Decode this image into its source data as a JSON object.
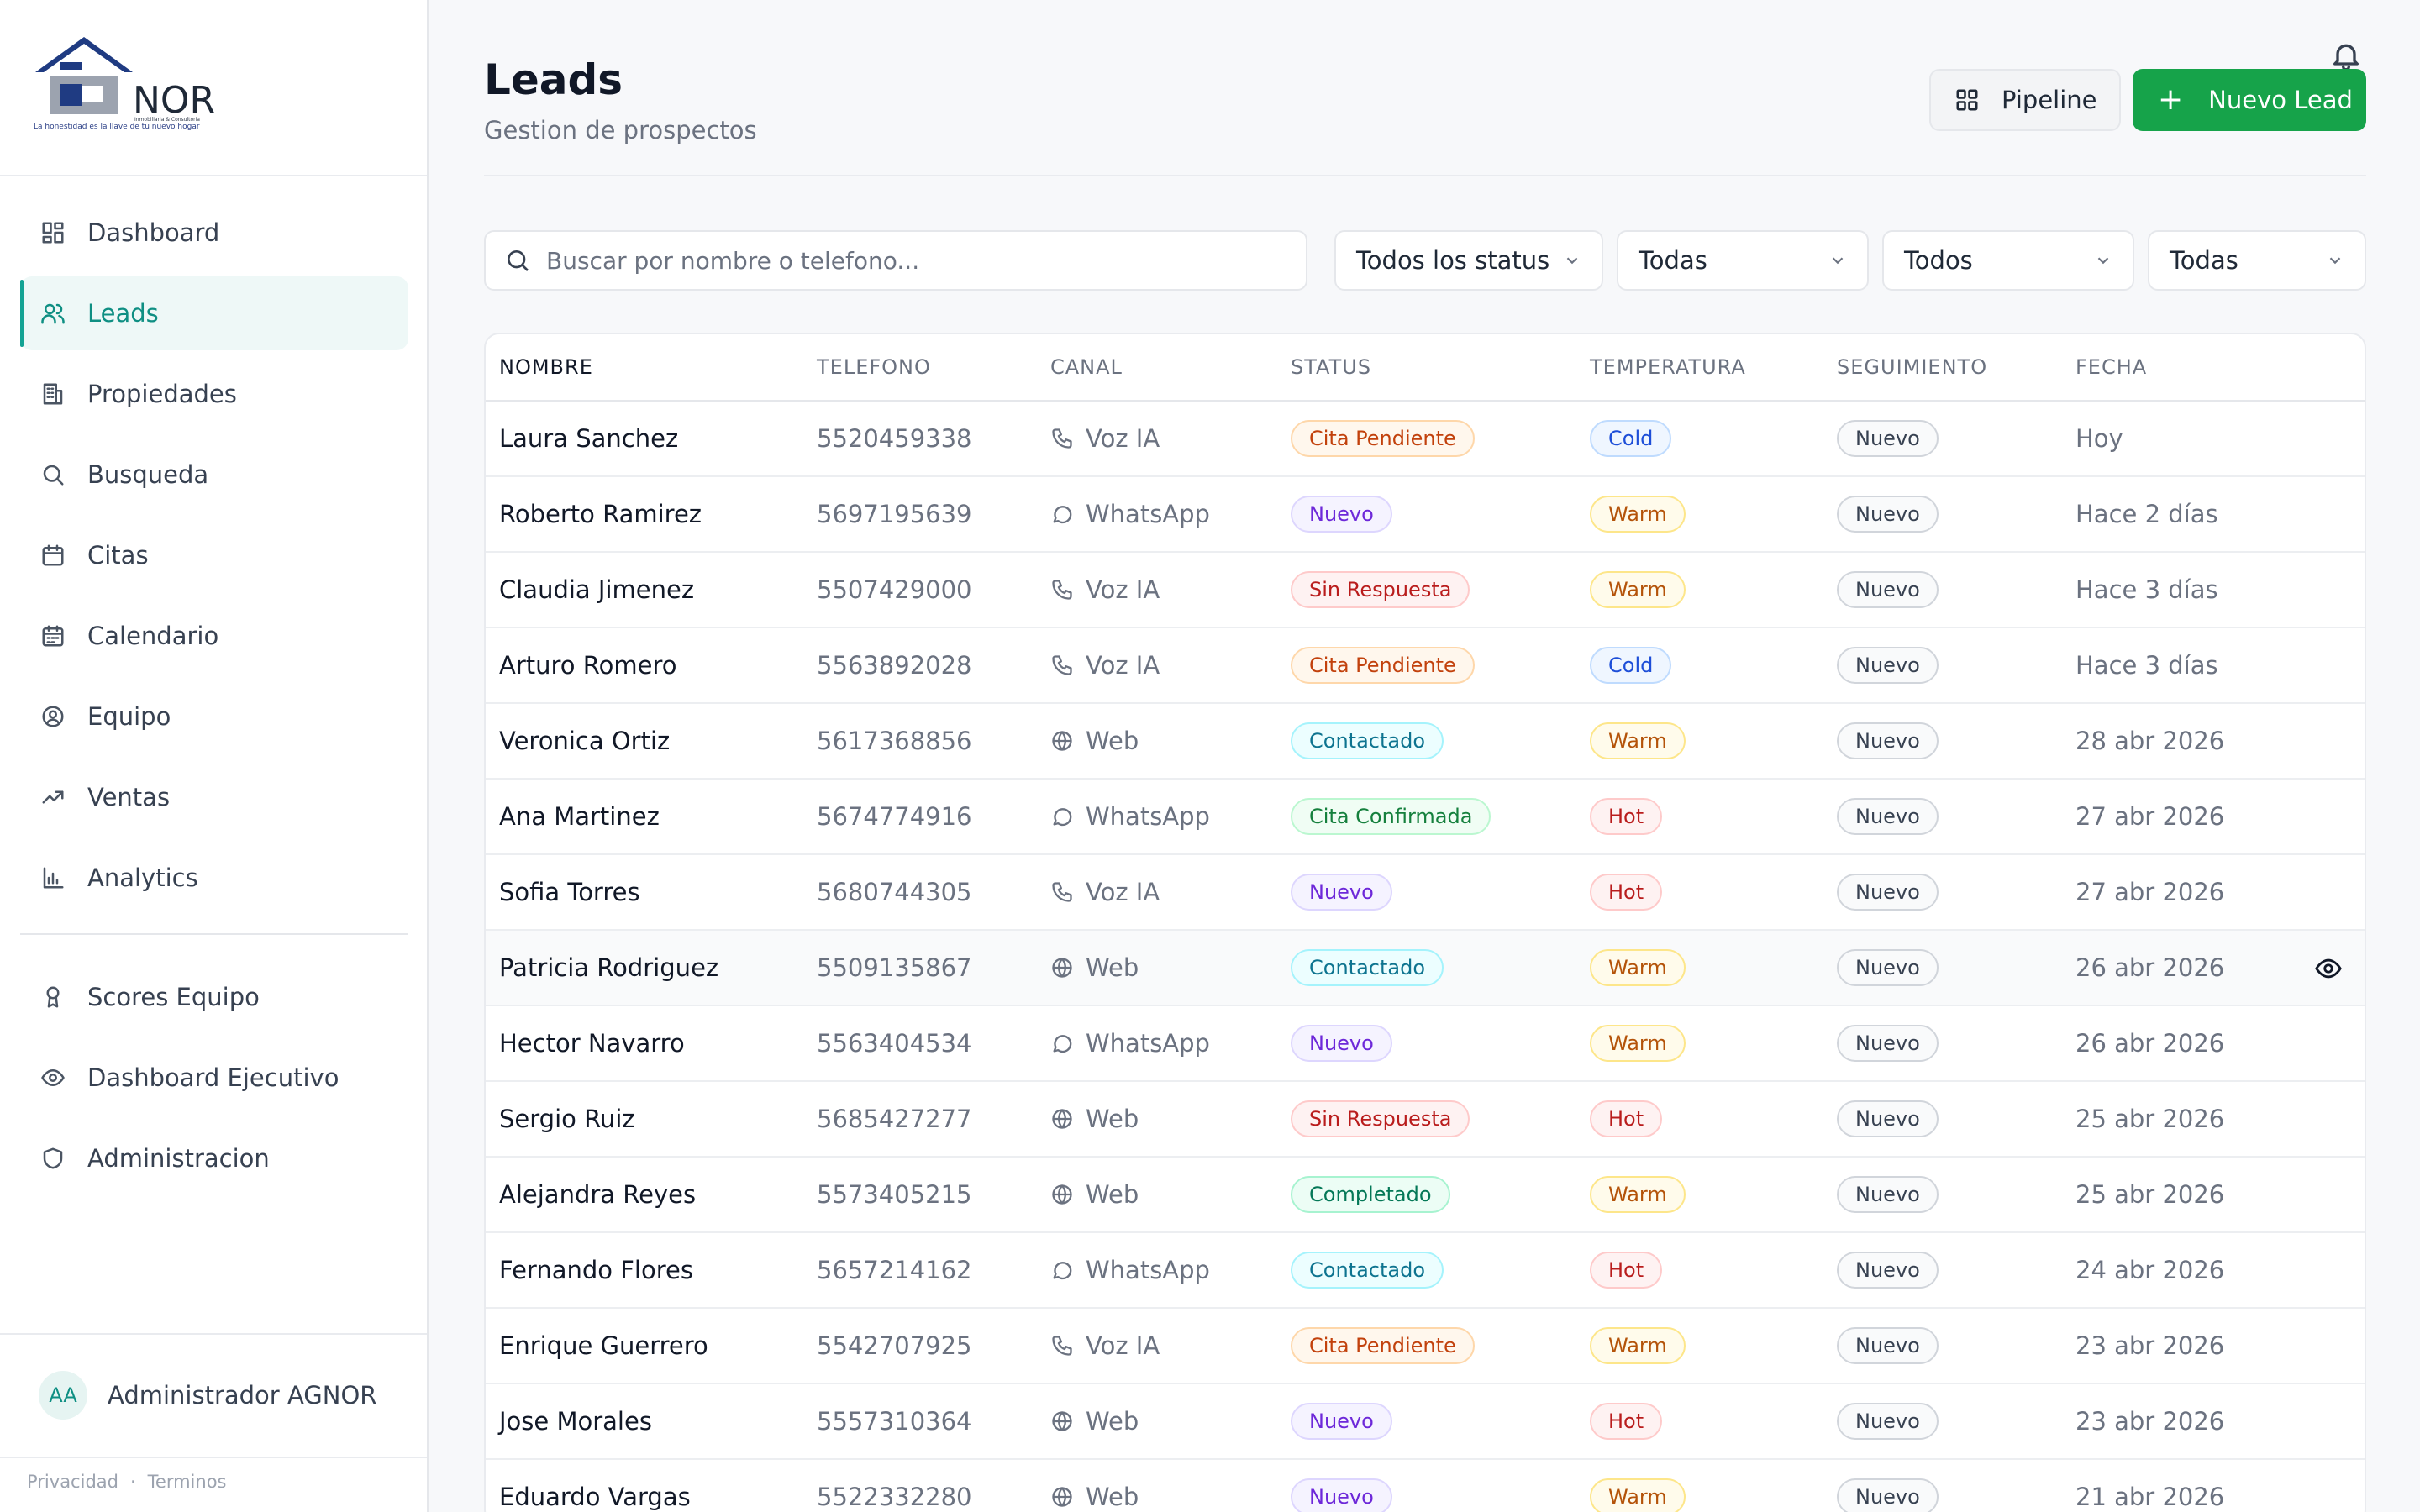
{
  "sidebar": {
    "logo_text": "NOR",
    "logo_subtext": "Inmobiliaria & Consultoria",
    "logo_tagline": "La honestidad es la llave de tu nuevo hogar",
    "nav": [
      {
        "label": "Dashboard",
        "icon": "dashboard-icon"
      },
      {
        "label": "Leads",
        "icon": "users-icon",
        "active": true
      },
      {
        "label": "Propiedades",
        "icon": "building-icon"
      },
      {
        "label": "Busqueda",
        "icon": "search-icon"
      },
      {
        "label": "Citas",
        "icon": "calendar-icon"
      },
      {
        "label": "Calendario",
        "icon": "calendar-grid-icon"
      },
      {
        "label": "Equipo",
        "icon": "user-circle-icon"
      },
      {
        "label": "Ventas",
        "icon": "trending-up-icon"
      },
      {
        "label": "Analytics",
        "icon": "bar-chart-icon"
      }
    ],
    "nav2": [
      {
        "label": "Scores Equipo",
        "icon": "award-icon"
      },
      {
        "label": "Dashboard Ejecutivo",
        "icon": "eye-icon"
      },
      {
        "label": "Administracion",
        "icon": "shield-icon"
      }
    ],
    "user": {
      "initials": "AA",
      "name": "Administrador AGNOR"
    },
    "footer": {
      "privacy": "Privacidad",
      "separator": "·",
      "terms": "Terminos"
    }
  },
  "header": {
    "title": "Leads",
    "subtitle": "Gestion de prospectos",
    "pipeline_label": "Pipeline",
    "new_lead_label": "Nuevo Lead"
  },
  "filters": {
    "search_placeholder": "Buscar por nombre o telefono...",
    "status": "Todos los status",
    "filter2": "Todas",
    "filter3": "Todos",
    "filter4": "Todas"
  },
  "table": {
    "columns": [
      "NOMBRE",
      "TELEFONO",
      "CANAL",
      "STATUS",
      "TEMPERATURA",
      "SEGUIMIENTO",
      "FECHA"
    ],
    "rows": [
      {
        "nombre": "Laura Sanchez",
        "telefono": "5520459338",
        "canal": "Voz IA",
        "status": "Cita Pendiente",
        "temperatura": "Cold",
        "seguimiento": "Nuevo",
        "fecha": "Hoy"
      },
      {
        "nombre": "Roberto Ramirez",
        "telefono": "5697195639",
        "canal": "WhatsApp",
        "status": "Nuevo",
        "temperatura": "Warm",
        "seguimiento": "Nuevo",
        "fecha": "Hace 2 días"
      },
      {
        "nombre": "Claudia Jimenez",
        "telefono": "5507429000",
        "canal": "Voz IA",
        "status": "Sin Respuesta",
        "temperatura": "Warm",
        "seguimiento": "Nuevo",
        "fecha": "Hace 3 días"
      },
      {
        "nombre": "Arturo Romero",
        "telefono": "5563892028",
        "canal": "Voz IA",
        "status": "Cita Pendiente",
        "temperatura": "Cold",
        "seguimiento": "Nuevo",
        "fecha": "Hace 3 días"
      },
      {
        "nombre": "Veronica Ortiz",
        "telefono": "5617368856",
        "canal": "Web",
        "status": "Contactado",
        "temperatura": "Warm",
        "seguimiento": "Nuevo",
        "fecha": "28 abr 2026"
      },
      {
        "nombre": "Ana Martinez",
        "telefono": "5674774916",
        "canal": "WhatsApp",
        "status": "Cita Confirmada",
        "temperatura": "Hot",
        "seguimiento": "Nuevo",
        "fecha": "27 abr 2026"
      },
      {
        "nombre": "Sofia Torres",
        "telefono": "5680744305",
        "canal": "Voz IA",
        "status": "Nuevo",
        "temperatura": "Hot",
        "seguimiento": "Nuevo",
        "fecha": "27 abr 2026"
      },
      {
        "nombre": "Patricia Rodriguez",
        "telefono": "5509135867",
        "canal": "Web",
        "status": "Contactado",
        "temperatura": "Warm",
        "seguimiento": "Nuevo",
        "fecha": "26 abr 2026",
        "hover": true
      },
      {
        "nombre": "Hector Navarro",
        "telefono": "5563404534",
        "canal": "WhatsApp",
        "status": "Nuevo",
        "temperatura": "Warm",
        "seguimiento": "Nuevo",
        "fecha": "26 abr 2026"
      },
      {
        "nombre": "Sergio Ruiz",
        "telefono": "5685427277",
        "canal": "Web",
        "status": "Sin Respuesta",
        "temperatura": "Hot",
        "seguimiento": "Nuevo",
        "fecha": "25 abr 2026"
      },
      {
        "nombre": "Alejandra Reyes",
        "telefono": "5573405215",
        "canal": "Web",
        "status": "Completado",
        "temperatura": "Warm",
        "seguimiento": "Nuevo",
        "fecha": "25 abr 2026"
      },
      {
        "nombre": "Fernando Flores",
        "telefono": "5657214162",
        "canal": "WhatsApp",
        "status": "Contactado",
        "temperatura": "Hot",
        "seguimiento": "Nuevo",
        "fecha": "24 abr 2026"
      },
      {
        "nombre": "Enrique Guerrero",
        "telefono": "5542707925",
        "canal": "Voz IA",
        "status": "Cita Pendiente",
        "temperatura": "Warm",
        "seguimiento": "Nuevo",
        "fecha": "23 abr 2026"
      },
      {
        "nombre": "Jose Morales",
        "telefono": "5557310364",
        "canal": "Web",
        "status": "Nuevo",
        "temperatura": "Hot",
        "seguimiento": "Nuevo",
        "fecha": "23 abr 2026"
      },
      {
        "nombre": "Eduardo Vargas",
        "telefono": "5522332280",
        "canal": "Web",
        "status": "Nuevo",
        "temperatura": "Warm",
        "seguimiento": "Nuevo",
        "fecha": "21 abr 2026"
      }
    ]
  },
  "colors": {
    "accent": "#0f8f83",
    "primary_button": "#16a34a"
  }
}
